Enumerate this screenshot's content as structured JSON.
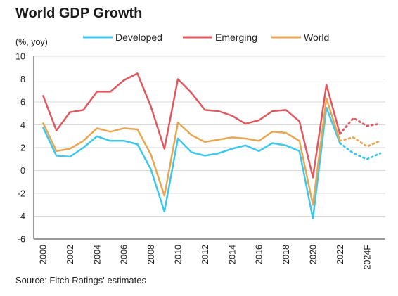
{
  "title": "World GDP Growth",
  "source": "Source: Fitch Ratings' estimates",
  "chart_data": {
    "type": "line",
    "ylabel": "(%, yoy)",
    "ylim": [
      -6,
      10
    ],
    "yticks": [
      -6,
      -4,
      -2,
      0,
      2,
      4,
      6,
      8,
      10
    ],
    "grid": true,
    "legend": "top",
    "x": [
      2000,
      2001,
      2002,
      2003,
      2004,
      2005,
      2006,
      2007,
      2008,
      2009,
      2010,
      2011,
      2012,
      2013,
      2014,
      2015,
      2016,
      2017,
      2018,
      2019,
      2020,
      2021,
      2022,
      2023,
      2024,
      2025
    ],
    "xtick_labels": [
      {
        "x": 2000,
        "label": "2000"
      },
      {
        "x": 2002,
        "label": "2002"
      },
      {
        "x": 2004,
        "label": "2004"
      },
      {
        "x": 2006,
        "label": "2006"
      },
      {
        "x": 2008,
        "label": "2008"
      },
      {
        "x": 2010,
        "label": "2010"
      },
      {
        "x": 2012,
        "label": "2012"
      },
      {
        "x": 2014,
        "label": "2014"
      },
      {
        "x": 2016,
        "label": "2016"
      },
      {
        "x": 2018,
        "label": "2018"
      },
      {
        "x": 2020,
        "label": "2020"
      },
      {
        "x": 2022,
        "label": "2022"
      },
      {
        "x": 2024,
        "label": "2024F"
      }
    ],
    "forecast_from": 2022,
    "series": [
      {
        "name": "Developed",
        "color": "#3cc8ec",
        "values": [
          3.8,
          1.3,
          1.2,
          2.0,
          3.0,
          2.6,
          2.6,
          2.3,
          0.1,
          -3.6,
          2.8,
          1.6,
          1.3,
          1.5,
          1.9,
          2.2,
          1.7,
          2.4,
          2.2,
          1.7,
          -4.2,
          5.5,
          2.4,
          1.5,
          1.0,
          1.5
        ]
      },
      {
        "name": "Emerging",
        "color": "#e0575e",
        "values": [
          6.6,
          3.5,
          5.1,
          5.3,
          6.9,
          6.9,
          7.9,
          8.5,
          5.6,
          1.9,
          8.0,
          6.8,
          5.3,
          5.2,
          4.8,
          4.1,
          4.4,
          5.2,
          5.3,
          4.3,
          -0.6,
          7.5,
          3.2,
          4.6,
          3.9,
          4.1
        ]
      },
      {
        "name": "World",
        "color": "#e8a652",
        "values": [
          4.2,
          1.7,
          1.9,
          2.6,
          3.7,
          3.4,
          3.7,
          3.6,
          1.4,
          -2.2,
          4.2,
          3.1,
          2.5,
          2.7,
          2.9,
          2.8,
          2.6,
          3.4,
          3.3,
          2.6,
          -3.0,
          6.3,
          2.6,
          2.9,
          2.1,
          2.6
        ]
      }
    ]
  }
}
